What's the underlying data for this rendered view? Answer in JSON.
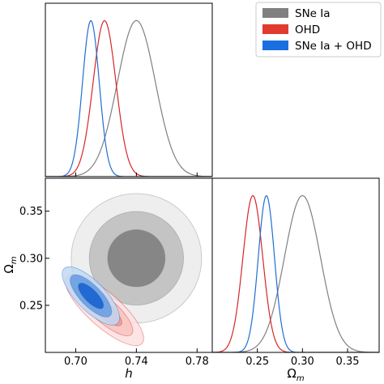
{
  "chart_data": {
    "type": "corner",
    "parameters": [
      {
        "symbol": "h",
        "range": [
          0.68,
          0.79
        ],
        "ticks": [
          "0.70",
          "0.74",
          "0.78"
        ],
        "tick_values": [
          0.7,
          0.74,
          0.78
        ]
      },
      {
        "symbol": "Ω",
        "subscript": "m",
        "range": [
          0.2,
          0.385
        ],
        "ticks": [
          "0.25",
          "0.30",
          "0.35"
        ],
        "tick_values": [
          0.25,
          0.3,
          0.35
        ]
      }
    ],
    "legend": {
      "placement": "top-right",
      "entries": [
        "SNe Ia",
        "OHD",
        "SNe Ia + OHD"
      ]
    },
    "series": [
      {
        "name": "SNe Ia",
        "color": "#808080",
        "h": {
          "mean": 0.74,
          "sigma": 0.0125
        },
        "omega_m": {
          "mean": 0.3,
          "sigma": 0.02
        },
        "rho": 0.0,
        "fill_colors": [
          "#808080",
          "#bfbfbf",
          "#ebebeb"
        ]
      },
      {
        "name": "OHD",
        "color": "#d62728",
        "h": {
          "mean": 0.719,
          "sigma": 0.0075
        },
        "omega_m": {
          "mean": 0.245,
          "sigma": 0.011
        },
        "rho": -0.8,
        "fill_colors": [
          "#f09a95",
          "#f7c4c0",
          "#fbe1df"
        ]
      },
      {
        "name": "SNe Ia + OHD",
        "color": "#1f6fd1",
        "h": {
          "mean": 0.71,
          "sigma": 0.0055
        },
        "omega_m": {
          "mean": 0.26,
          "sigma": 0.009
        },
        "rho": -0.75,
        "fill_colors": [
          "#1a63cf",
          "#6a9fe0",
          "#c2d8f2"
        ]
      }
    ],
    "contour_levels": [
      0.68,
      0.95,
      0.997
    ]
  }
}
